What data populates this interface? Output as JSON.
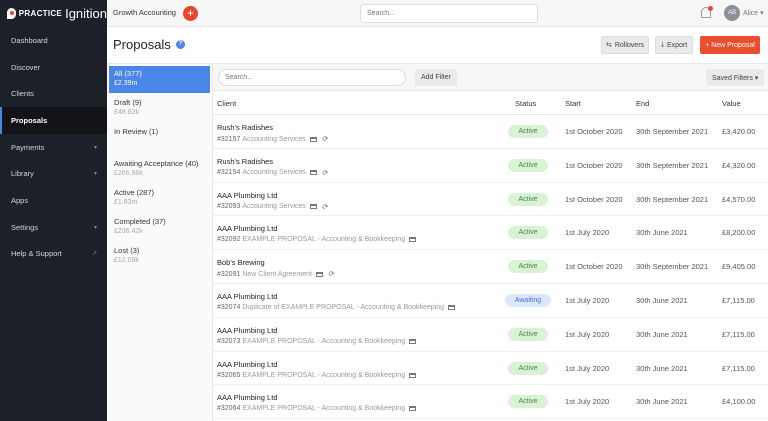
{
  "brand": {
    "word1": "PRACTICE",
    "word2": "Ignition"
  },
  "sidebar": {
    "items": [
      {
        "label": "Dashboard",
        "chevron": false
      },
      {
        "label": "Discover",
        "chevron": false
      },
      {
        "label": "Clients",
        "chevron": false
      },
      {
        "label": "Proposals",
        "chevron": false,
        "active": true
      },
      {
        "label": "Payments",
        "chevron": true
      },
      {
        "label": "Library",
        "chevron": true
      },
      {
        "label": "Apps",
        "chevron": false
      },
      {
        "label": "Settings",
        "chevron": true
      },
      {
        "label": "Help & Support",
        "external": true
      }
    ]
  },
  "topbar": {
    "org": "Growth Accounting",
    "search_placeholder": "Search...",
    "avatar_initials": "AB",
    "user": "Alice ▾"
  },
  "page": {
    "title": "Proposals",
    "help": "?",
    "rollovers": "Rollovers",
    "export": "Export",
    "new_proposal": "+ New Proposal"
  },
  "filters": [
    {
      "label": "All (377)",
      "sum": "£2.39m",
      "active": true
    },
    {
      "label": "Draft (9)",
      "sum": "£48.82k"
    },
    {
      "label": "In Review (1)",
      "sum": ""
    },
    {
      "label": "Awaiting Acceptance (40)",
      "sum": "£266.96k",
      "gap": true
    },
    {
      "label": "Active (287)",
      "sum": "£1.83m"
    },
    {
      "label": "Completed (37)",
      "sum": "£236.42k"
    },
    {
      "label": "Lost (3)",
      "sum": "£12.09k"
    }
  ],
  "toolbar": {
    "search_placeholder": "Search...",
    "add_filter": "Add Filter",
    "saved_filters": "Saved Filters ▾"
  },
  "table": {
    "columns": [
      "Client",
      "Status",
      "Start",
      "End",
      "Value"
    ],
    "rows": [
      {
        "client": "Rush's Radishes",
        "id": "#32157",
        "title": "Accounting Services",
        "recurring": true,
        "status": "Active",
        "start": "1st October 2020",
        "end": "30th September 2021",
        "value": "£3,420.00"
      },
      {
        "client": "Rush's Radishes",
        "id": "#32154",
        "title": "Accounting Services",
        "recurring": true,
        "status": "Active",
        "start": "1st October 2020",
        "end": "30th September 2021",
        "value": "£4,320.00"
      },
      {
        "client": "AAA Plumbing Ltd",
        "id": "#32093",
        "title": "Accounting Services",
        "recurring": true,
        "status": "Active",
        "start": "1st October 2020",
        "end": "30th September 2021",
        "value": "£4,570.00"
      },
      {
        "client": "AAA Plumbing Ltd",
        "id": "#32092",
        "title": "EXAMPLE PROPOSAL - Accounting & Bookkeeping",
        "recurring": false,
        "status": "Active",
        "start": "1st July 2020",
        "end": "30th June 2021",
        "value": "£8,200.00"
      },
      {
        "client": "Bob's Brewing",
        "id": "#32091",
        "title": "New Client Agreement",
        "recurring": true,
        "status": "Active",
        "start": "1st October 2020",
        "end": "30th September 2021",
        "value": "£9,405.00"
      },
      {
        "client": "AAA Plumbing Ltd",
        "id": "#32074",
        "title": "Duplicate of EXAMPLE PROPOSAL - Accounting & Bookkeeping",
        "recurring": false,
        "status": "Awaiting",
        "start": "1st July 2020",
        "end": "30th June 2021",
        "value": "£7,115.00"
      },
      {
        "client": "AAA Plumbing Ltd",
        "id": "#32073",
        "title": "EXAMPLE PROPOSAL - Accounting & Bookkeeping",
        "recurring": false,
        "status": "Active",
        "start": "1st July 2020",
        "end": "30th June 2021",
        "value": "£7,115.00"
      },
      {
        "client": "AAA Plumbing Ltd",
        "id": "#32065",
        "title": "EXAMPLE PROPOSAL - Accounting & Bookkeeping",
        "recurring": false,
        "status": "Active",
        "start": "1st July 2020",
        "end": "30th June 2021",
        "value": "£7,115.00"
      },
      {
        "client": "AAA Plumbing Ltd",
        "id": "#32064",
        "title": "EXAMPLE PROPOSAL - Accounting & Bookkeeping",
        "recurring": false,
        "status": "Active",
        "start": "1st July 2020",
        "end": "30th June 2021",
        "value": "£4,100.00"
      }
    ]
  },
  "colors": {
    "accent": "#4a86e8",
    "brand": "#ea4e2f",
    "sidebar": "#1c2028",
    "active_badge": "#d9f2d5",
    "awaiting_badge": "#dde8fc"
  }
}
